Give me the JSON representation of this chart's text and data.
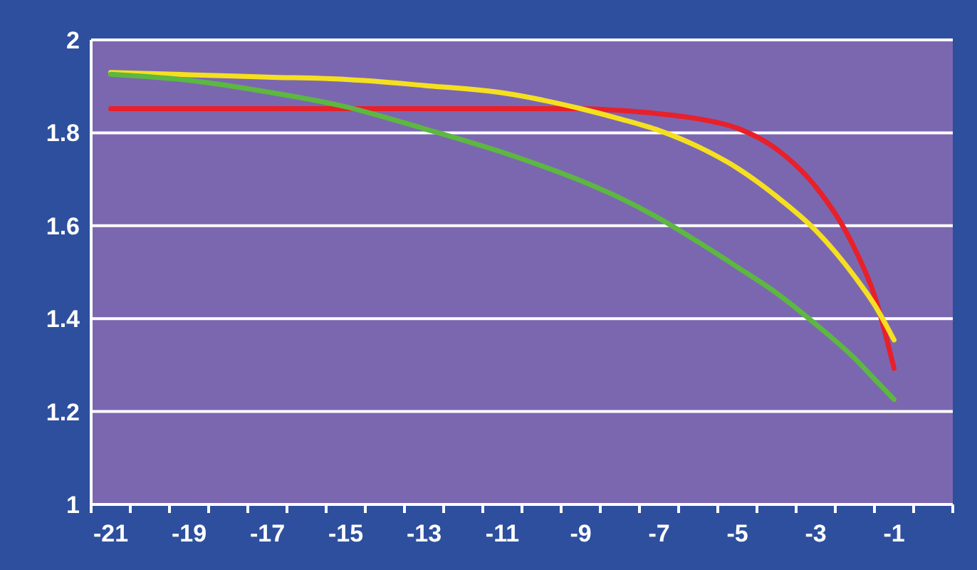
{
  "chart_data": {
    "type": "line",
    "x": [
      -21,
      -19,
      -17,
      -15,
      -13,
      -11,
      -9,
      -8,
      -7,
      -6,
      -5,
      -4,
      -3,
      -2,
      -1.5,
      -1
    ],
    "xlim": [
      -21.5,
      0.5
    ],
    "xticks": [
      {
        "value": -21,
        "label": "-21"
      },
      {
        "value": -19,
        "label": "-19"
      },
      {
        "value": -17,
        "label": "-17"
      },
      {
        "value": -15,
        "label": "-15"
      },
      {
        "value": -13,
        "label": "-13"
      },
      {
        "value": -11,
        "label": "-11"
      },
      {
        "value": -9,
        "label": "-9"
      },
      {
        "value": -7,
        "label": "-7"
      },
      {
        "value": -5,
        "label": "-5"
      },
      {
        "value": -3,
        "label": "-3"
      },
      {
        "value": -1,
        "label": "-1"
      }
    ],
    "ylim": [
      1,
      2
    ],
    "yticks": [
      1,
      1.2,
      1.4,
      1.6,
      1.8,
      2
    ],
    "grid": "y",
    "marker": "none",
    "line_style": "solid",
    "series": [
      {
        "color": "#e8202a",
        "values": [
          1.852,
          1.852,
          1.852,
          1.852,
          1.852,
          1.852,
          1.852,
          1.848,
          1.841,
          1.83,
          1.81,
          1.765,
          1.684,
          1.55,
          1.45,
          1.293
        ]
      },
      {
        "color": "#f5e020",
        "values": [
          1.93,
          1.925,
          1.92,
          1.915,
          1.902,
          1.886,
          1.852,
          1.83,
          1.805,
          1.77,
          1.724,
          1.663,
          1.59,
          1.49,
          1.43,
          1.354
        ]
      },
      {
        "color": "#5cb840",
        "values": [
          1.926,
          1.913,
          1.888,
          1.856,
          1.809,
          1.758,
          1.697,
          1.66,
          1.616,
          1.565,
          1.511,
          1.455,
          1.388,
          1.314,
          1.27,
          1.226
        ]
      }
    ]
  }
}
